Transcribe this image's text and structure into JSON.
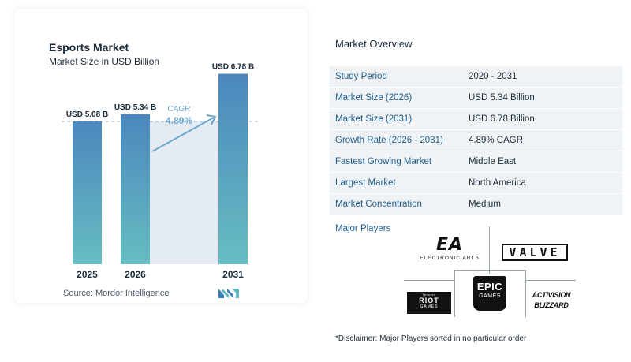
{
  "chart_data": {
    "type": "bar",
    "title": "Esports Market",
    "subtitle": "Market Size in USD Billion",
    "categories": [
      "2025",
      "2026",
      "2031"
    ],
    "values": [
      5.08,
      5.34,
      6.78
    ],
    "data_labels": [
      "USD 5.08 B",
      "USD 5.34 B",
      "USD 6.78 B"
    ],
    "ylim": [
      0,
      7.3
    ],
    "bar_color": "#4f8fc0",
    "bar_color_bottom": "#5fb8c0",
    "cagr_label": "CAGR",
    "cagr_value": "4.89%",
    "source": "Source:  Mordor Intelligence"
  },
  "overview": {
    "title": "Market Overview",
    "rows": [
      {
        "key": "Study Period",
        "value": "2020 - 2031"
      },
      {
        "key": "Market Size (2026)",
        "value": "USD 5.34 Billion"
      },
      {
        "key": "Market Size (2031)",
        "value": "USD 6.78 Billion"
      },
      {
        "key": "Growth Rate (2026 - 2031)",
        "value": "4.89% CAGR"
      },
      {
        "key": "Fastest Growing Market",
        "value": "Middle East"
      },
      {
        "key": "Largest Market",
        "value": "North America"
      },
      {
        "key": "Market Concentration",
        "value": "Medium"
      }
    ]
  },
  "players": {
    "title": "Major Players",
    "logos": {
      "ea": "EA",
      "ea_sub": "ELECTRONIC ARTS",
      "valve": "VALVE",
      "riot_top": "Tencent",
      "riot": "RIOT",
      "riot_sub": "GAMES",
      "epic_top": "EPIC",
      "epic_bottom": "GAMES",
      "activision": "ACTIVISION",
      "blizzard": "BLIZZARD"
    }
  },
  "disclaimer": "*Disclaimer: Major Players sorted in no particular order",
  "colors": {
    "accent": "#1f5e8c",
    "row_alt": "#f0f3f6"
  }
}
